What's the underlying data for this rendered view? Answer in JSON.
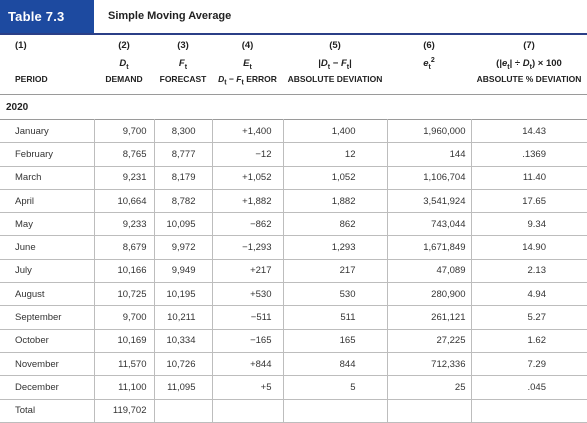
{
  "header": {
    "table_number": "Table 7.3",
    "table_title": "Simple Moving Average"
  },
  "columns": [
    {
      "num": "(1)",
      "symbol": "",
      "label": "PERIOD"
    },
    {
      "num": "(2)",
      "symbol": "D_t",
      "label": "DEMAND"
    },
    {
      "num": "(3)",
      "symbol": "F_t",
      "label": "FORECAST"
    },
    {
      "num": "(4)",
      "symbol": "E_t",
      "label": "D_t − F_t ERROR"
    },
    {
      "num": "(5)",
      "symbol": "|D_t − F_t|",
      "label": "ABSOLUTE DEVIATION"
    },
    {
      "num": "(6)",
      "symbol": "e_t^2",
      "label": ""
    },
    {
      "num": "(7)",
      "symbol": "(|e_t| ÷ D_t) × 100",
      "label": "ABSOLUTE % DEVIATION"
    }
  ],
  "year": "2020",
  "rows": [
    {
      "period": "January",
      "demand": "9,700",
      "forecast": "8,300",
      "error": "+1,400",
      "abs_dev": "1,400",
      "sq_err": "1,960,000",
      "abs_pct": "14.43"
    },
    {
      "period": "February",
      "demand": "8,765",
      "forecast": "8,777",
      "error": "−12",
      "abs_dev": "12",
      "sq_err": "144",
      "abs_pct": ".1369"
    },
    {
      "period": "March",
      "demand": "9,231",
      "forecast": "8,179",
      "error": "+1,052",
      "abs_dev": "1,052",
      "sq_err": "1,106,704",
      "abs_pct": "11.40"
    },
    {
      "period": "April",
      "demand": "10,664",
      "forecast": "8,782",
      "error": "+1,882",
      "abs_dev": "1,882",
      "sq_err": "3,541,924",
      "abs_pct": "17.65"
    },
    {
      "period": "May",
      "demand": "9,233",
      "forecast": "10,095",
      "error": "−862",
      "abs_dev": "862",
      "sq_err": "743,044",
      "abs_pct": "9.34"
    },
    {
      "period": "June",
      "demand": "8,679",
      "forecast": "9,972",
      "error": "−1,293",
      "abs_dev": "1,293",
      "sq_err": "1,671,849",
      "abs_pct": "14.90"
    },
    {
      "period": "July",
      "demand": "10,166",
      "forecast": "9,949",
      "error": "+217",
      "abs_dev": "217",
      "sq_err": "47,089",
      "abs_pct": "2.13"
    },
    {
      "period": "August",
      "demand": "10,725",
      "forecast": "10,195",
      "error": "+530",
      "abs_dev": "530",
      "sq_err": "280,900",
      "abs_pct": "4.94"
    },
    {
      "period": "September",
      "demand": "9,700",
      "forecast": "10,211",
      "error": "−511",
      "abs_dev": "511",
      "sq_err": "261,121",
      "abs_pct": "5.27"
    },
    {
      "period": "October",
      "demand": "10,169",
      "forecast": "10,334",
      "error": "−165",
      "abs_dev": "165",
      "sq_err": "27,225",
      "abs_pct": "1.62"
    },
    {
      "period": "November",
      "demand": "11,570",
      "forecast": "10,726",
      "error": "+844",
      "abs_dev": "844",
      "sq_err": "712,336",
      "abs_pct": "7.29"
    },
    {
      "period": "December",
      "demand": "11,100",
      "forecast": "11,095",
      "error": "+5",
      "abs_dev": "5",
      "sq_err": "25",
      "abs_pct": ".045"
    }
  ],
  "total": {
    "label": "Total",
    "demand": "119,702"
  }
}
